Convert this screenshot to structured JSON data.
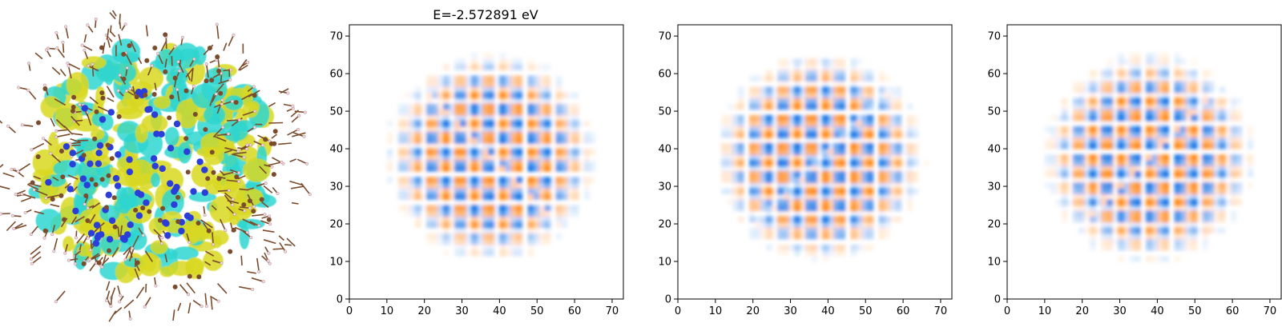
{
  "colors": {
    "positive": "#ff8a1e",
    "negative": "#1e78e6",
    "isosurface_a": "#d8d822",
    "isosurface_b": "#2fd6d0",
    "atom_core": "#2b3fd8",
    "atom_ligand": "#7a4b2c",
    "bond": "#7a4b2c",
    "hydrogen": "#f2d6dc"
  },
  "chart_data": [
    {
      "type": "image",
      "content": "3D molecular orbital isosurface rendering of a capped nanocrystal",
      "icon": "molecule-render"
    },
    {
      "type": "heatmap",
      "title": "E=-2.572891 eV",
      "xlim": [
        0,
        73
      ],
      "ylim": [
        0,
        73
      ],
      "xticks": [
        "0",
        "10",
        "20",
        "30",
        "40",
        "50",
        "60",
        "70"
      ],
      "yticks": [
        "0",
        "10",
        "20",
        "30",
        "40",
        "50",
        "60",
        "70"
      ],
      "pattern_orientation": "diagonal-down",
      "pattern_phase": 0.0
    },
    {
      "type": "heatmap",
      "title": "",
      "xlim": [
        0,
        73
      ],
      "ylim": [
        0,
        73
      ],
      "xticks": [
        "0",
        "10",
        "20",
        "30",
        "40",
        "50",
        "60",
        "70"
      ],
      "yticks": [
        "0",
        "10",
        "20",
        "30",
        "40",
        "50",
        "60",
        "70"
      ],
      "pattern_orientation": "diagonal-up",
      "pattern_phase": 1.3
    },
    {
      "type": "heatmap",
      "title": "",
      "xlim": [
        0,
        73
      ],
      "ylim": [
        0,
        73
      ],
      "xticks": [
        "0",
        "10",
        "20",
        "30",
        "40",
        "50",
        "60",
        "70"
      ],
      "yticks": [
        "0",
        "10",
        "20",
        "30",
        "40",
        "50",
        "60",
        "70"
      ],
      "pattern_orientation": "diagonal-up",
      "pattern_phase": 2.4
    }
  ]
}
